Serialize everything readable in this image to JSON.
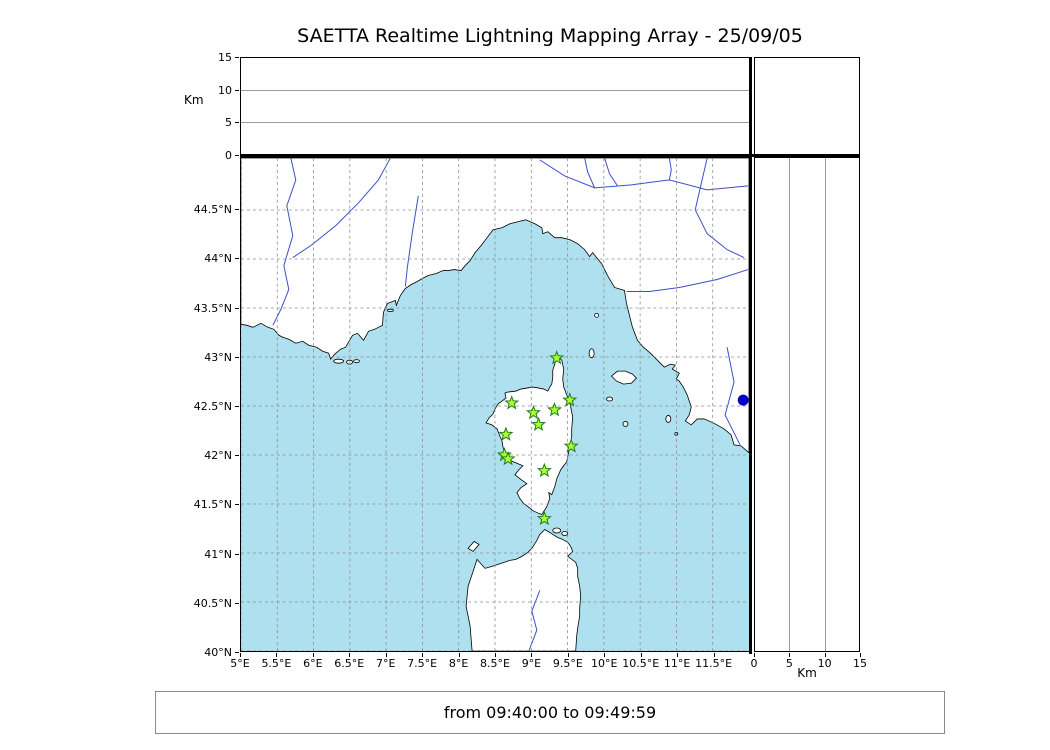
{
  "title": "SAETTA Realtime Lightning Mapping Array - 25/09/05",
  "footer": {
    "text": "from 09:40:00 to 09:49:59"
  },
  "colors": {
    "sea": "#aee0ef",
    "land": "#ffffff",
    "coast": "#000000",
    "river": "#3b4fc8",
    "grid": "#8f8f8f",
    "panel_gridline": "#9a9a9a",
    "station_fill": "#adff2f",
    "station_edge": "#1e7d1e",
    "event_dot": "#0000c8"
  },
  "altitude_axis": {
    "label": "Km",
    "range": [
      0,
      15
    ],
    "ticks": [
      {
        "v": 0,
        "label": "0"
      },
      {
        "v": 5,
        "label": "5"
      },
      {
        "v": 10,
        "label": "10"
      },
      {
        "v": 15,
        "label": "15"
      }
    ],
    "gridlines": [
      5,
      10
    ]
  },
  "map_axes": {
    "lon_range": [
      5,
      12
    ],
    "lat_range": [
      40,
      45.031
    ],
    "lon_ticks": [
      {
        "v": 5,
        "label": "5°E"
      },
      {
        "v": 5.5,
        "label": "5.5°E"
      },
      {
        "v": 6,
        "label": "6°E"
      },
      {
        "v": 6.5,
        "label": "6.5°E"
      },
      {
        "v": 7,
        "label": "7°E"
      },
      {
        "v": 7.5,
        "label": "7.5°E"
      },
      {
        "v": 8,
        "label": "8°E"
      },
      {
        "v": 8.5,
        "label": "8.5°E"
      },
      {
        "v": 9,
        "label": "9°E"
      },
      {
        "v": 9.5,
        "label": "9.5°E"
      },
      {
        "v": 10,
        "label": "10°E"
      },
      {
        "v": 10.5,
        "label": "10.5°E"
      },
      {
        "v": 11,
        "label": "11°E"
      },
      {
        "v": 11.5,
        "label": "11.5°E"
      }
    ],
    "lat_ticks": [
      {
        "v": 44.5,
        "label": "44.5°N"
      },
      {
        "v": 44,
        "label": "44°N"
      },
      {
        "v": 43.5,
        "label": "43.5°N"
      },
      {
        "v": 43,
        "label": "43°N"
      },
      {
        "v": 42.5,
        "label": "42.5°N"
      },
      {
        "v": 42,
        "label": "42°N"
      },
      {
        "v": 41.5,
        "label": "41.5°N"
      },
      {
        "v": 41,
        "label": "41°N"
      },
      {
        "v": 40.5,
        "label": "40.5°N"
      },
      {
        "v": 40,
        "label": "40°N"
      }
    ]
  },
  "stations": [
    {
      "lon": 9.35,
      "lat": 42.99
    },
    {
      "lon": 8.73,
      "lat": 42.53
    },
    {
      "lon": 9.03,
      "lat": 42.43
    },
    {
      "lon": 9.32,
      "lat": 42.46
    },
    {
      "lon": 9.53,
      "lat": 42.56
    },
    {
      "lon": 8.65,
      "lat": 42.21
    },
    {
      "lon": 9.1,
      "lat": 42.31
    },
    {
      "lon": 8.63,
      "lat": 42.0
    },
    {
      "lon": 8.68,
      "lat": 41.96
    },
    {
      "lon": 9.55,
      "lat": 42.09
    },
    {
      "lon": 9.18,
      "lat": 41.84
    },
    {
      "lon": 9.18,
      "lat": 41.35
    }
  ],
  "event_point": {
    "lon": 11.92,
    "lat": 42.56
  }
}
